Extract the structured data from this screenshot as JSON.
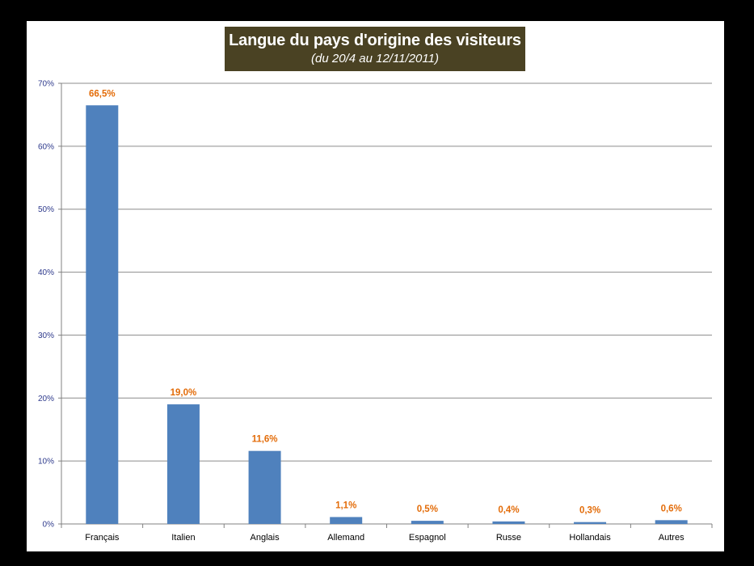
{
  "chart_data": {
    "type": "bar",
    "title": "Langue du pays d'origine des visiteurs",
    "subtitle": "(du 20/4 au 12/11/2011)",
    "categories": [
      "Français",
      "Italien",
      "Anglais",
      "Allemand",
      "Espagnol",
      "Russe",
      "Hollandais",
      "Autres"
    ],
    "values": [
      66.5,
      19.0,
      11.6,
      1.1,
      0.5,
      0.4,
      0.3,
      0.6
    ],
    "data_labels": [
      "66,5%",
      "19,0%",
      "11,6%",
      "1,1%",
      "0,5%",
      "0,4%",
      "0,3%",
      "0,6%"
    ],
    "ylim": [
      0,
      70
    ],
    "yticks": [
      0,
      10,
      20,
      30,
      40,
      50,
      60,
      70
    ],
    "ytick_labels": [
      "0%",
      "10%",
      "20%",
      "30%",
      "40%",
      "50%",
      "60%",
      "70%"
    ],
    "xlabel": "",
    "ylabel": "",
    "grid": true,
    "legend": "none",
    "colors": {
      "bar": "#4f81bd",
      "data_label": "#e36c09",
      "title_background": "#4a4223",
      "gridline": "#8c8c8c",
      "ytick_text": "#2e3a8c"
    }
  }
}
